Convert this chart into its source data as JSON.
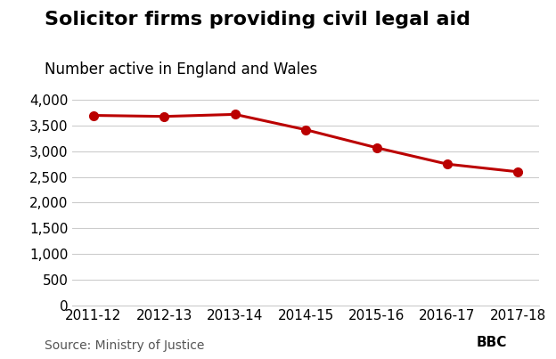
{
  "title": "Solicitor firms providing civil legal aid",
  "subtitle": "Number active in England and Wales",
  "source": "Source: Ministry of Justice",
  "x_labels": [
    "2011-12",
    "2012-13",
    "2013-14",
    "2014-15",
    "2015-16",
    "2016-17",
    "2017-18"
  ],
  "y_values": [
    3700,
    3680,
    3720,
    3420,
    3070,
    2750,
    2600
  ],
  "line_color": "#bb0000",
  "marker": "o",
  "marker_size": 7,
  "ylim": [
    0,
    4200
  ],
  "yticks": [
    0,
    500,
    1000,
    1500,
    2000,
    2500,
    3000,
    3500,
    4000
  ],
  "ytick_labels": [
    "0",
    "500",
    "1,000",
    "1,500",
    "2,000",
    "2,500",
    "3,000",
    "3,500",
    "4,000"
  ],
  "title_fontsize": 16,
  "subtitle_fontsize": 12,
  "tick_fontsize": 11,
  "source_fontsize": 10,
  "background_color": "#ffffff",
  "grid_color": "#cccccc",
  "bbc_box_color": "#cccccc",
  "bbc_text_color": "#000000"
}
